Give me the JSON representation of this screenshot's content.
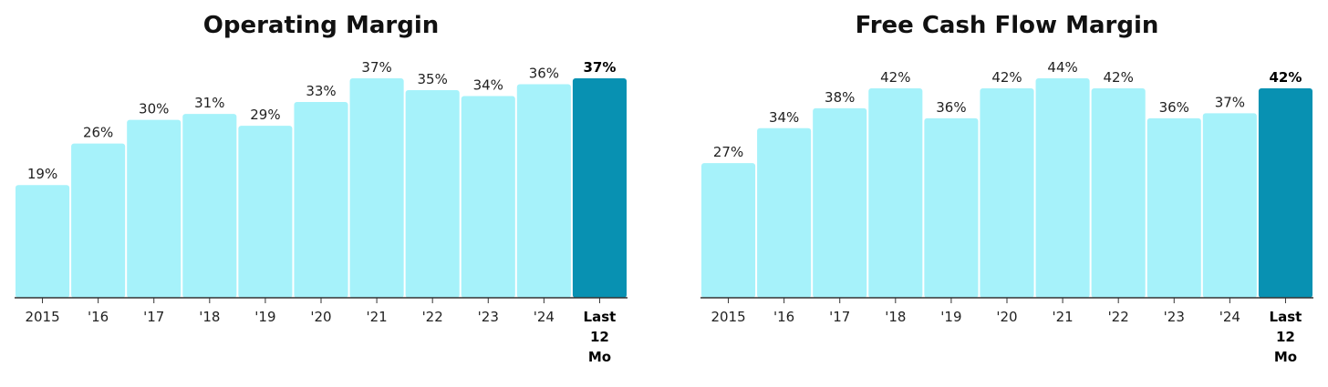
{
  "colors": {
    "bar": "#a6f2fa",
    "bar_highlight": "#0891b2",
    "axis": "#333333"
  },
  "chart_data": [
    {
      "type": "bar",
      "title": "Operating Margin",
      "categories": [
        "2015",
        "'16",
        "'17",
        "'18",
        "'19",
        "'20",
        "'21",
        "'22",
        "'23",
        "'24",
        "Last 12 Mo"
      ],
      "values": [
        19,
        26,
        30,
        31,
        29,
        33,
        37,
        35,
        34,
        36,
        37
      ],
      "value_labels": [
        "19%",
        "26%",
        "30%",
        "31%",
        "29%",
        "33%",
        "37%",
        "35%",
        "34%",
        "36%",
        "37%"
      ],
      "highlight_index": 10,
      "xlabel": "",
      "ylabel": "",
      "ylim": [
        0,
        37
      ],
      "grid": false
    },
    {
      "type": "bar",
      "title": "Free Cash Flow Margin",
      "categories": [
        "2015",
        "'16",
        "'17",
        "'18",
        "'19",
        "'20",
        "'21",
        "'22",
        "'23",
        "'24",
        "Last 12 Mo"
      ],
      "values": [
        27,
        34,
        38,
        42,
        36,
        42,
        44,
        42,
        36,
        37,
        42
      ],
      "value_labels": [
        "27%",
        "34%",
        "38%",
        "42%",
        "36%",
        "42%",
        "44%",
        "42%",
        "36%",
        "37%",
        "42%"
      ],
      "highlight_index": 10,
      "xlabel": "",
      "ylabel": "",
      "ylim": [
        0,
        44
      ],
      "grid": false
    }
  ]
}
